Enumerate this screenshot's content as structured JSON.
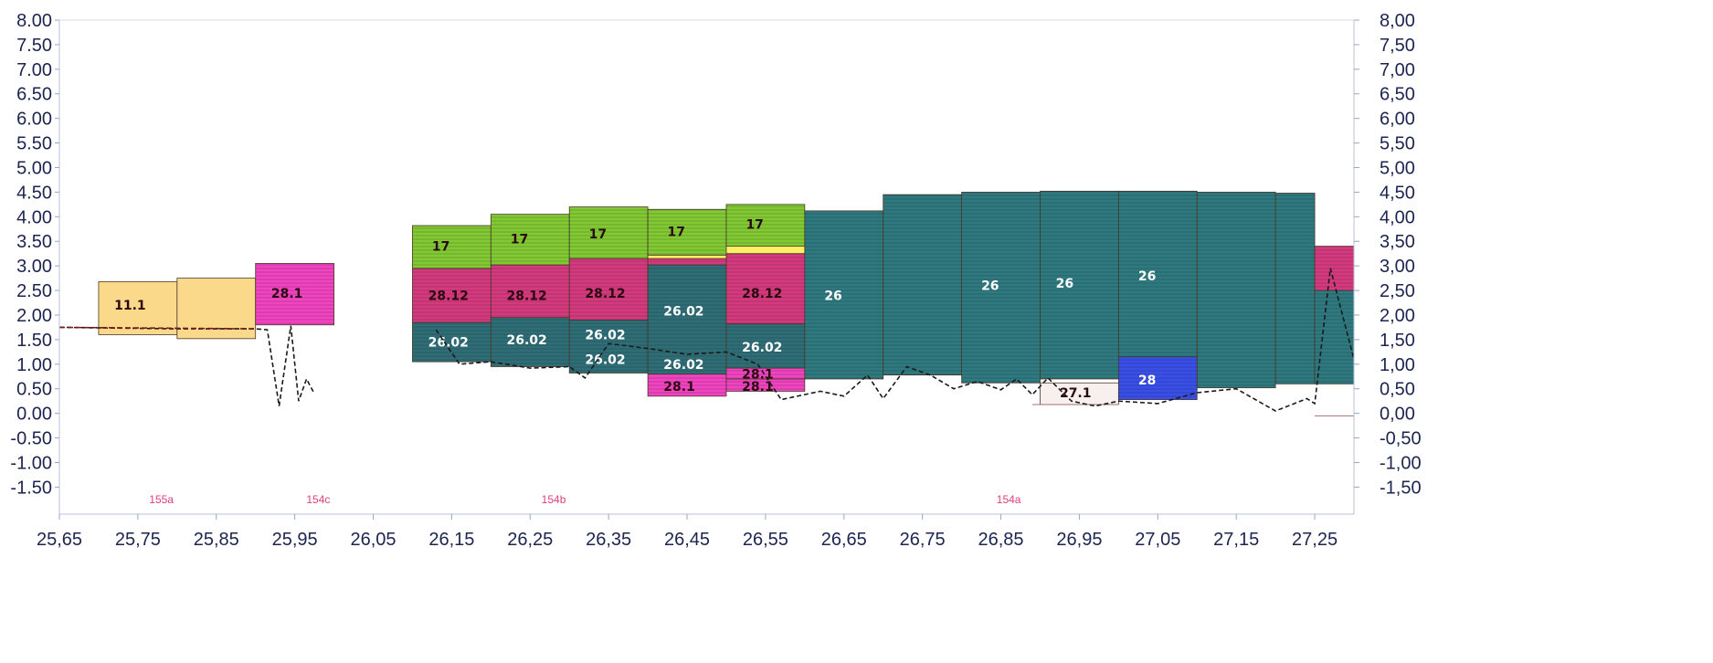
{
  "chart_data": {
    "type": "bar",
    "title": "",
    "xlabel": "",
    "ylabel": "",
    "xlim": [
      25.65,
      27.3
    ],
    "ylim": [
      -2.05,
      8.0
    ],
    "grid": false,
    "legend": "none",
    "x_ticks": [
      "25,65",
      "25,75",
      "25,85",
      "25,95",
      "26,05",
      "26,15",
      "26,25",
      "26,35",
      "26,45",
      "26,55",
      "26,65",
      "26,75",
      "26,85",
      "26,95",
      "27,05",
      "27,15",
      "27,25"
    ],
    "y_ticks_left": [
      "8.00",
      "7.50",
      "7.00",
      "6.50",
      "6.00",
      "5.50",
      "5.00",
      "4.50",
      "4.00",
      "3.50",
      "3.00",
      "2.50",
      "2.00",
      "1.50",
      "1.00",
      "0.50",
      "0.00",
      "-0.50",
      "-1.00",
      "-1.50"
    ],
    "y_ticks_right": [
      "8,00",
      "7,50",
      "7,00",
      "6,50",
      "6,00",
      "5,50",
      "5,00",
      "4,50",
      "4,00",
      "3,50",
      "3,00",
      "2,50",
      "2,00",
      "1,50",
      "1,00",
      "0,50",
      "0,00",
      "-0,50",
      "-1,00",
      "-1,50"
    ],
    "colors": {
      "11.1": "#fbd98a",
      "28.1": "#f044c0",
      "28.12": "#d43a7e",
      "26.02": "#2f6e76",
      "26": "#2f7a80",
      "17": "#82c934",
      "28": "#3a4fe6",
      "27.1": "#f8f0ee",
      "thin": "#ffee66"
    },
    "blocks": [
      {
        "label": "11.1",
        "x0": 25.7,
        "x1": 25.8,
        "y0": 1.6,
        "y1": 2.68,
        "fill": "11.1",
        "lx": 25.72,
        "ly": 2.2
      },
      {
        "label": "",
        "x0": 25.8,
        "x1": 25.9,
        "y0": 1.52,
        "y1": 2.75,
        "fill": "11.1"
      },
      {
        "label": "28.1",
        "x0": 25.9,
        "x1": 26.0,
        "y0": 1.8,
        "y1": 3.05,
        "fill": "28.1",
        "lx": 25.92,
        "ly": 2.45
      },
      {
        "label": "26.02",
        "x0": 26.1,
        "x1": 26.2,
        "y0": 1.05,
        "y1": 1.85,
        "fill": "26.02",
        "lx": 26.12,
        "ly": 1.45,
        "light": true
      },
      {
        "label": "28.12",
        "x0": 26.1,
        "x1": 26.2,
        "y0": 1.85,
        "y1": 2.95,
        "fill": "28.12",
        "lx": 26.12,
        "ly": 2.4
      },
      {
        "label": "17",
        "x0": 26.1,
        "x1": 26.2,
        "y0": 2.95,
        "y1": 3.82,
        "fill": "17",
        "lx": 26.125,
        "ly": 3.4
      },
      {
        "label": "26.02",
        "x0": 26.2,
        "x1": 26.3,
        "y0": 0.95,
        "y1": 1.95,
        "fill": "26.02",
        "lx": 26.22,
        "ly": 1.5,
        "light": true
      },
      {
        "label": "28.12",
        "x0": 26.2,
        "x1": 26.3,
        "y0": 1.95,
        "y1": 3.02,
        "fill": "28.12",
        "lx": 26.22,
        "ly": 2.4
      },
      {
        "label": "17",
        "x0": 26.2,
        "x1": 26.3,
        "y0": 3.02,
        "y1": 4.05,
        "fill": "17",
        "lx": 26.225,
        "ly": 3.55
      },
      {
        "label": "",
        "x0": 26.3,
        "x1": 26.4,
        "y0": 0.82,
        "y1": 1.9,
        "fill": "26.02"
      },
      {
        "label": "28.12",
        "x0": 26.3,
        "x1": 26.4,
        "y0": 1.9,
        "y1": 3.15,
        "fill": "28.12",
        "lx": 26.32,
        "ly": 2.45
      },
      {
        "label": "17",
        "x0": 26.3,
        "x1": 26.4,
        "y0": 3.15,
        "y1": 4.2,
        "fill": "17",
        "lx": 26.325,
        "ly": 3.65
      },
      {
        "label": "28.1",
        "x0": 26.4,
        "x1": 26.5,
        "y0": 0.35,
        "y1": 0.8,
        "fill": "28.1",
        "lx": 26.42,
        "ly": 0.55
      },
      {
        "label": "",
        "x0": 26.4,
        "x1": 26.5,
        "y0": 0.8,
        "y1": 3.02,
        "fill": "26.02"
      },
      {
        "label": "",
        "x0": 26.4,
        "x1": 26.5,
        "y0": 3.02,
        "y1": 3.15,
        "fill": "28.12"
      },
      {
        "label": "",
        "x0": 26.4,
        "x1": 26.5,
        "y0": 3.15,
        "y1": 3.22,
        "fill": "thin"
      },
      {
        "label": "17",
        "x0": 26.4,
        "x1": 26.5,
        "y0": 3.22,
        "y1": 4.15,
        "fill": "17",
        "lx": 26.425,
        "ly": 3.7
      },
      {
        "label": "28.1",
        "x0": 26.5,
        "x1": 26.6,
        "y0": 0.45,
        "y1": 0.7,
        "fill": "28.1",
        "lx": 26.52,
        "ly": 0.55
      },
      {
        "label": "28.1",
        "x0": 26.5,
        "x1": 26.6,
        "y0": 0.7,
        "y1": 0.92,
        "fill": "28.1",
        "lx": 26.52,
        "ly": 0.8
      },
      {
        "label": "26.02",
        "x0": 26.5,
        "x1": 26.6,
        "y0": 0.92,
        "y1": 1.82,
        "fill": "26.02",
        "lx": 26.52,
        "ly": 1.35,
        "light": true
      },
      {
        "label": "28.12",
        "x0": 26.5,
        "x1": 26.6,
        "y0": 1.82,
        "y1": 3.25,
        "fill": "28.12",
        "lx": 26.52,
        "ly": 2.45
      },
      {
        "label": "",
        "x0": 26.5,
        "x1": 26.6,
        "y0": 3.25,
        "y1": 3.4,
        "fill": "thin"
      },
      {
        "label": "17",
        "x0": 26.5,
        "x1": 26.6,
        "y0": 3.4,
        "y1": 4.25,
        "fill": "17",
        "lx": 26.525,
        "ly": 3.85
      },
      {
        "label": "26",
        "x0": 26.6,
        "x1": 26.7,
        "y0": 0.7,
        "y1": 4.12,
        "fill": "26",
        "lx": 26.625,
        "ly": 2.4,
        "light": true
      },
      {
        "label": "",
        "x0": 26.7,
        "x1": 26.8,
        "y0": 0.78,
        "y1": 4.45,
        "fill": "26"
      },
      {
        "label": "26",
        "x0": 26.8,
        "x1": 26.9,
        "y0": 0.62,
        "y1": 4.5,
        "fill": "26",
        "lx": 26.825,
        "ly": 2.6,
        "light": true
      },
      {
        "label": "26",
        "x0": 26.9,
        "x1": 27.0,
        "y0": 0.7,
        "y1": 4.52,
        "fill": "26",
        "lx": 26.92,
        "ly": 2.65,
        "light": true
      },
      {
        "label": "26",
        "x0": 27.0,
        "x1": 27.1,
        "y0": 1.1,
        "y1": 4.52,
        "fill": "26",
        "lx": 27.025,
        "ly": 2.8,
        "light": true
      },
      {
        "label": "",
        "x0": 27.1,
        "x1": 27.2,
        "y0": 0.52,
        "y1": 4.5,
        "fill": "26"
      },
      {
        "label": "",
        "x0": 27.2,
        "x1": 27.25,
        "y0": 0.6,
        "y1": 4.48,
        "fill": "26"
      },
      {
        "label": "",
        "x0": 27.25,
        "x1": 27.3,
        "y0": 0.6,
        "y1": 2.5,
        "fill": "26"
      },
      {
        "label": "",
        "x0": 27.25,
        "x1": 27.3,
        "y0": 2.5,
        "y1": 3.4,
        "fill": "28.12"
      },
      {
        "label": "27.1",
        "x0": 26.9,
        "x1": 27.0,
        "y0": 0.18,
        "y1": 0.62,
        "fill": "27.1",
        "lx": 26.925,
        "ly": 0.42
      },
      {
        "label": "28",
        "x0": 27.0,
        "x1": 27.1,
        "y0": 0.28,
        "y1": 1.15,
        "fill": "28",
        "lx": 27.025,
        "ly": 0.68,
        "light": true
      }
    ],
    "floating_labels": [
      {
        "label": "26.02",
        "x": 26.32,
        "y": 1.6,
        "light": true
      },
      {
        "label": "26.02",
        "x": 26.32,
        "y": 1.1,
        "light": true
      },
      {
        "label": "26.02",
        "x": 26.42,
        "y": 2.08,
        "light": true
      },
      {
        "label": "26.02",
        "x": 26.42,
        "y": 1.0,
        "light": true
      }
    ],
    "section_labels": [
      {
        "label": "155a",
        "x": 25.78
      },
      {
        "label": "154c",
        "x": 25.98
      },
      {
        "label": "154b",
        "x": 26.28
      },
      {
        "label": "154a",
        "x": 26.86
      }
    ],
    "line_series": [
      {
        "x": 25.65,
        "y": 1.75
      },
      {
        "x": 25.7,
        "y": 1.74
      },
      {
        "x": 25.75,
        "y": 1.73
      },
      {
        "x": 25.8,
        "y": 1.72
      },
      {
        "x": 25.85,
        "y": 1.72
      },
      {
        "x": 25.9,
        "y": 1.72
      },
      {
        "x": 25.915,
        "y": 1.7
      },
      {
        "x": 25.93,
        "y": 0.15
      },
      {
        "x": 25.945,
        "y": 1.78
      },
      {
        "x": 25.955,
        "y": 0.25
      },
      {
        "x": 25.965,
        "y": 0.7
      },
      {
        "x": 25.975,
        "y": 0.4
      },
      {
        "x": null,
        "y": null
      },
      {
        "x": 26.13,
        "y": 1.7
      },
      {
        "x": 26.16,
        "y": 1.0
      },
      {
        "x": 26.2,
        "y": 1.05
      },
      {
        "x": 26.25,
        "y": 0.92
      },
      {
        "x": 26.3,
        "y": 0.95
      },
      {
        "x": 26.32,
        "y": 0.72
      },
      {
        "x": 26.35,
        "y": 1.42
      },
      {
        "x": 26.4,
        "y": 1.32
      },
      {
        "x": 26.45,
        "y": 1.2
      },
      {
        "x": 26.5,
        "y": 1.25
      },
      {
        "x": 26.54,
        "y": 1.0
      },
      {
        "x": 26.57,
        "y": 0.28
      },
      {
        "x": 26.62,
        "y": 0.45
      },
      {
        "x": 26.65,
        "y": 0.35
      },
      {
        "x": 26.68,
        "y": 0.78
      },
      {
        "x": 26.7,
        "y": 0.3
      },
      {
        "x": 26.73,
        "y": 0.95
      },
      {
        "x": 26.76,
        "y": 0.78
      },
      {
        "x": 26.79,
        "y": 0.5
      },
      {
        "x": 26.82,
        "y": 0.65
      },
      {
        "x": 26.85,
        "y": 0.48
      },
      {
        "x": 26.87,
        "y": 0.7
      },
      {
        "x": 26.89,
        "y": 0.38
      },
      {
        "x": 26.91,
        "y": 0.72
      },
      {
        "x": 26.94,
        "y": 0.25
      },
      {
        "x": 26.97,
        "y": 0.15
      },
      {
        "x": 27.0,
        "y": 0.25
      },
      {
        "x": 27.05,
        "y": 0.2
      },
      {
        "x": 27.1,
        "y": 0.42
      },
      {
        "x": 27.15,
        "y": 0.5
      },
      {
        "x": 27.2,
        "y": 0.05
      },
      {
        "x": 27.24,
        "y": 0.3
      },
      {
        "x": 27.25,
        "y": 0.2
      },
      {
        "x": 27.27,
        "y": 2.95
      },
      {
        "x": 27.3,
        "y": 1.1
      }
    ]
  }
}
